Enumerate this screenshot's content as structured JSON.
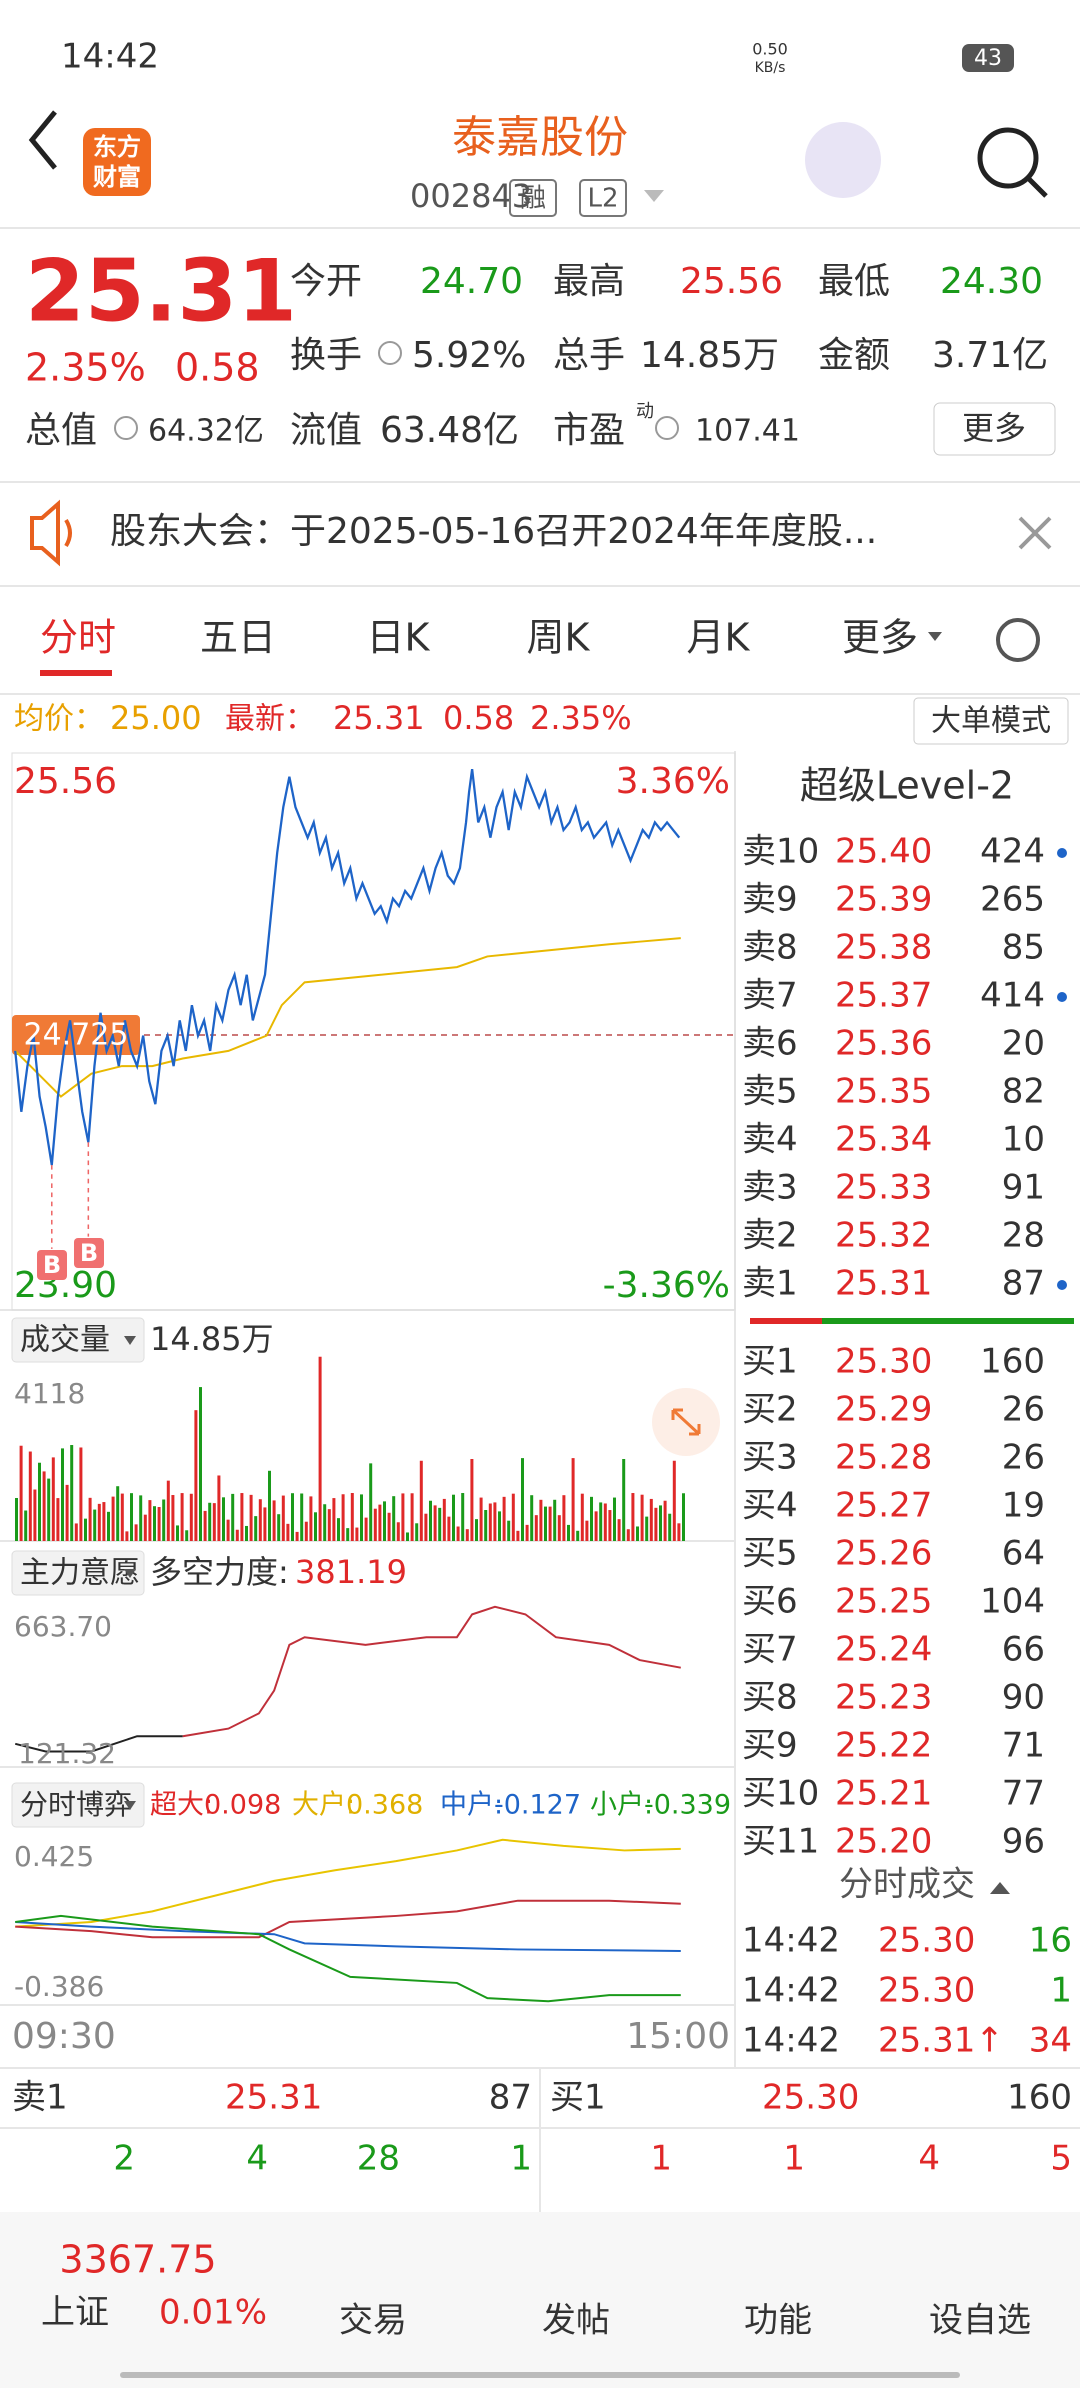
{
  "status": {
    "time": "14:42",
    "speed": "0.50",
    "speed_unit": "KB/s",
    "battery": "43"
  },
  "header": {
    "logo": [
      "东方",
      "财富"
    ],
    "title": "泰嘉股份",
    "code": "002843",
    "badges": [
      "融",
      "L2"
    ]
  },
  "quote": {
    "price": "25.31",
    "change_pct": "2.35%",
    "change": "0.58",
    "fields": [
      {
        "label": "今开",
        "value": "24.70"
      },
      {
        "label": "最高",
        "value": "25.56"
      },
      {
        "label": "最低",
        "value": "24.30"
      },
      {
        "label": "换手",
        "value": "5.92%"
      },
      {
        "label": "总手",
        "value": "14.85万"
      },
      {
        "label": "金额",
        "value": "3.71亿"
      },
      {
        "label": "总值",
        "value": "64.32亿"
      },
      {
        "label": "流值",
        "value": "63.48亿"
      },
      {
        "label": "市盈",
        "sup": "动",
        "value": "107.41"
      }
    ],
    "more_button": "更多"
  },
  "notice": "股东大会：于2025-05-16召开2024年年度股...",
  "tabs": [
    "分时",
    "五日",
    "日K",
    "周K",
    "月K",
    "更多"
  ],
  "avg_line": {
    "avg_label": "均价：",
    "avg": "25.00",
    "latest_label": "最新：",
    "latest": "25.31",
    "change": "0.58",
    "pct": "2.35%"
  },
  "mode_button": "大单模式",
  "chart": {
    "high": "25.56",
    "high_pct": "3.36%",
    "low": "23.90",
    "low_pct": "-3.36%",
    "mid": "24.725",
    "markers": [
      "B",
      "B"
    ],
    "start": "09:30",
    "end": "15:00"
  },
  "volume": {
    "label": "成交量",
    "total": "14.85万",
    "max": "4118"
  },
  "main_force": {
    "label": "主力意愿",
    "indicator_label": "多空力度:",
    "indicator": "381.19",
    "max": "663.70",
    "min": "121.32"
  },
  "game": {
    "label": "分时博弈",
    "items": [
      {
        "name": "超大:",
        "value": "0.098"
      },
      {
        "name": "大户:",
        "value": "0.368"
      },
      {
        "name": "中户:",
        "value": "-0.127"
      },
      {
        "name": "小户:",
        "value": "-0.339"
      }
    ],
    "max": "0.425",
    "min": "-0.386"
  },
  "order_book": {
    "title": "超级Level-2",
    "asks": [
      {
        "label": "卖10",
        "price": "25.40",
        "volume": "424"
      },
      {
        "label": "卖9",
        "price": "25.39",
        "volume": "265"
      },
      {
        "label": "卖8",
        "price": "25.38",
        "volume": "85"
      },
      {
        "label": "卖7",
        "price": "25.37",
        "volume": "414"
      },
      {
        "label": "卖6",
        "price": "25.36",
        "volume": "20"
      },
      {
        "label": "卖5",
        "price": "25.35",
        "volume": "82"
      },
      {
        "label": "卖4",
        "price": "25.34",
        "volume": "10"
      },
      {
        "label": "卖3",
        "price": "25.33",
        "volume": "91"
      },
      {
        "label": "卖2",
        "price": "25.32",
        "volume": "28"
      },
      {
        "label": "卖1",
        "price": "25.31",
        "volume": "87"
      }
    ],
    "bids": [
      {
        "label": "买1",
        "price": "25.30",
        "volume": "160"
      },
      {
        "label": "买2",
        "price": "25.29",
        "volume": "26"
      },
      {
        "label": "买3",
        "price": "25.28",
        "volume": "26"
      },
      {
        "label": "买4",
        "price": "25.27",
        "volume": "19"
      },
      {
        "label": "买5",
        "price": "25.26",
        "volume": "64"
      },
      {
        "label": "买6",
        "price": "25.25",
        "volume": "104"
      },
      {
        "label": "买7",
        "price": "25.24",
        "volume": "66"
      },
      {
        "label": "买8",
        "price": "25.23",
        "volume": "90"
      },
      {
        "label": "买9",
        "price": "25.22",
        "volume": "71"
      },
      {
        "label": "买10",
        "price": "25.21",
        "volume": "77"
      },
      {
        "label": "买11",
        "price": "25.20",
        "volume": "96"
      }
    ],
    "trades_title": "分时成交",
    "trades": [
      {
        "time": "14:42",
        "price": "25.30",
        "volume": "16"
      },
      {
        "time": "14:42",
        "price": "25.30",
        "volume": "1"
      },
      {
        "time": "14:42",
        "price": "25.31↑",
        "volume": "34"
      }
    ]
  },
  "bottom_book": {
    "left": {
      "label": "卖1",
      "price": "25.31",
      "volume": "87",
      "queue": [
        "2",
        "4",
        "28",
        "1"
      ]
    },
    "right": {
      "label": "买1",
      "price": "25.30",
      "volume": "160",
      "queue": [
        "1",
        "1",
        "4",
        "5"
      ]
    }
  },
  "nav": {
    "index": {
      "name": "上证",
      "value": "3367.75",
      "pct": "0.01%"
    },
    "items": [
      "交易",
      "发帖",
      "功能",
      "设自选"
    ]
  }
}
